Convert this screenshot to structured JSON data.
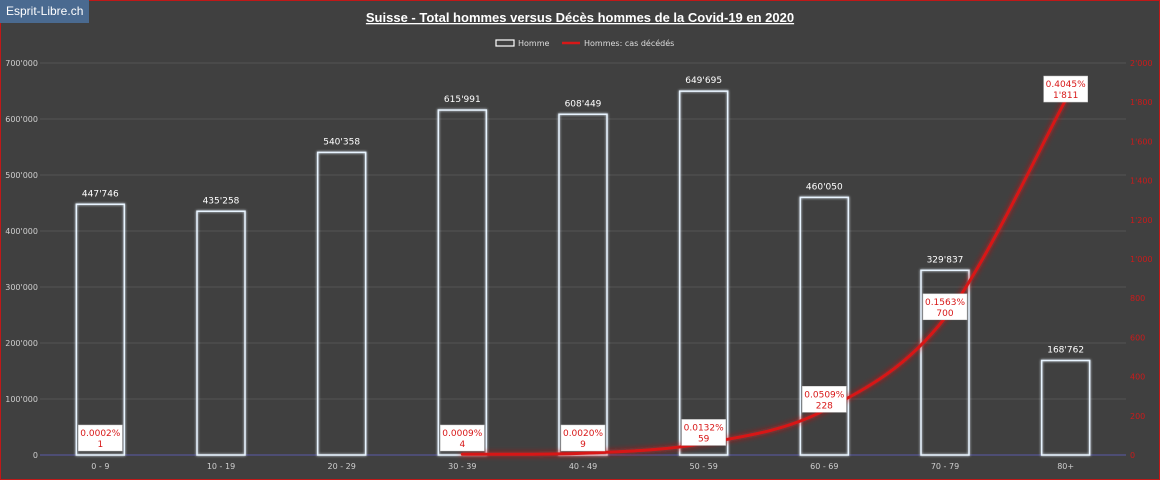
{
  "badge": "Esprit-Libre.ch",
  "chart_data": {
    "type": "bar",
    "title": "Suisse - Total hommes versus Décès hommes de la Covid-19 en 2020",
    "categories": [
      "0 - 9",
      "10 - 19",
      "20 - 29",
      "30 - 39",
      "40 - 49",
      "50 - 59",
      "60 - 69",
      "70 - 79",
      "80+"
    ],
    "series": [
      {
        "name": "Homme",
        "type": "bar",
        "axis": "left",
        "values": [
          447746,
          435258,
          540358,
          615991,
          608449,
          649695,
          460050,
          329837,
          168762
        ],
        "labels": [
          "447'746",
          "435'258",
          "540'358",
          "615'991",
          "608'449",
          "649'695",
          "460'050",
          "329'837",
          "168'762"
        ],
        "color": "#e8f4ff"
      },
      {
        "name": "Hommes: cas décédés",
        "type": "line",
        "axis": "right",
        "values": [
          1,
          0,
          0,
          4,
          9,
          59,
          228,
          700,
          1811
        ],
        "percent_labels": [
          "0.0002%",
          "",
          "",
          "0.0009%",
          "0.0020%",
          "0.0132%",
          "0.0509%",
          "0.1563%",
          "0.4045%"
        ],
        "count_labels": [
          "1",
          "",
          "",
          "4",
          "9",
          "59",
          "228",
          "700",
          "1'811"
        ],
        "color": "#d81818"
      }
    ],
    "yaxis_left": {
      "range": [
        0,
        700000
      ],
      "ticks": [
        "0",
        "100'000",
        "200'000",
        "300'000",
        "400'000",
        "500'000",
        "600'000",
        "700'000"
      ]
    },
    "yaxis_right": {
      "range": [
        0,
        2000
      ],
      "ticks": [
        "0",
        "200",
        "400",
        "600",
        "800",
        "1'000",
        "1'200",
        "1'400",
        "1'600",
        "1'800",
        "2'000"
      ]
    },
    "grid": true,
    "legend": "top-center"
  }
}
